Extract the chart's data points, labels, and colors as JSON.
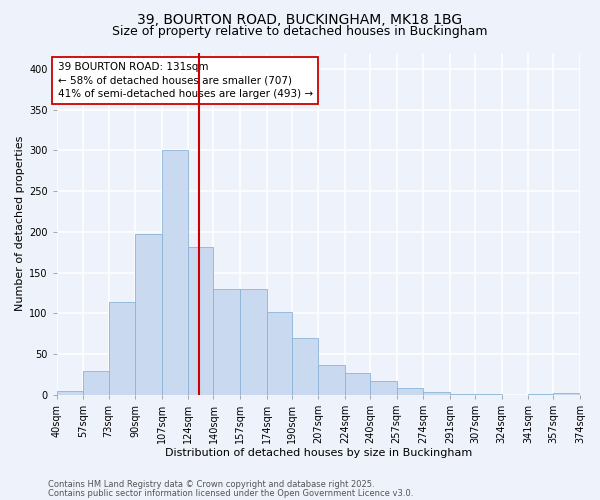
{
  "title1": "39, BOURTON ROAD, BUCKINGHAM, MK18 1BG",
  "title2": "Size of property relative to detached houses in Buckingham",
  "xlabel": "Distribution of detached houses by size in Buckingham",
  "ylabel": "Number of detached properties",
  "bin_labels": [
    "40sqm",
    "57sqm",
    "73sqm",
    "90sqm",
    "107sqm",
    "124sqm",
    "140sqm",
    "157sqm",
    "174sqm",
    "190sqm",
    "207sqm",
    "224sqm",
    "240sqm",
    "257sqm",
    "274sqm",
    "291sqm",
    "307sqm",
    "324sqm",
    "341sqm",
    "357sqm",
    "374sqm"
  ],
  "bin_edges": [
    40,
    57,
    73,
    90,
    107,
    124,
    140,
    157,
    174,
    190,
    207,
    224,
    240,
    257,
    274,
    291,
    307,
    324,
    341,
    357,
    374
  ],
  "bar_heights": [
    5,
    29,
    114,
    197,
    300,
    181,
    130,
    130,
    101,
    70,
    37,
    27,
    17,
    8,
    4,
    1,
    1,
    0,
    1,
    2
  ],
  "bar_color": "#c9daf0",
  "bar_edge_color": "#8ab4d8",
  "property_size": 131,
  "vline_color": "#cc0000",
  "annotation_text": "39 BOURTON ROAD: 131sqm\n← 58% of detached houses are smaller (707)\n41% of semi-detached houses are larger (493) →",
  "annotation_box_color": "#ffffff",
  "annotation_box_edge_color": "#cc0000",
  "ylim": [
    0,
    420
  ],
  "yticks": [
    0,
    50,
    100,
    150,
    200,
    250,
    300,
    350,
    400
  ],
  "footer1": "Contains HM Land Registry data © Crown copyright and database right 2025.",
  "footer2": "Contains public sector information licensed under the Open Government Licence v3.0.",
  "bg_color": "#eef2fa",
  "plot_bg_color": "#eef2fa",
  "grid_color": "#ffffff",
  "title1_fontsize": 10,
  "title2_fontsize": 9,
  "axis_fontsize": 8,
  "tick_fontsize": 7,
  "ann_fontsize": 7.5
}
